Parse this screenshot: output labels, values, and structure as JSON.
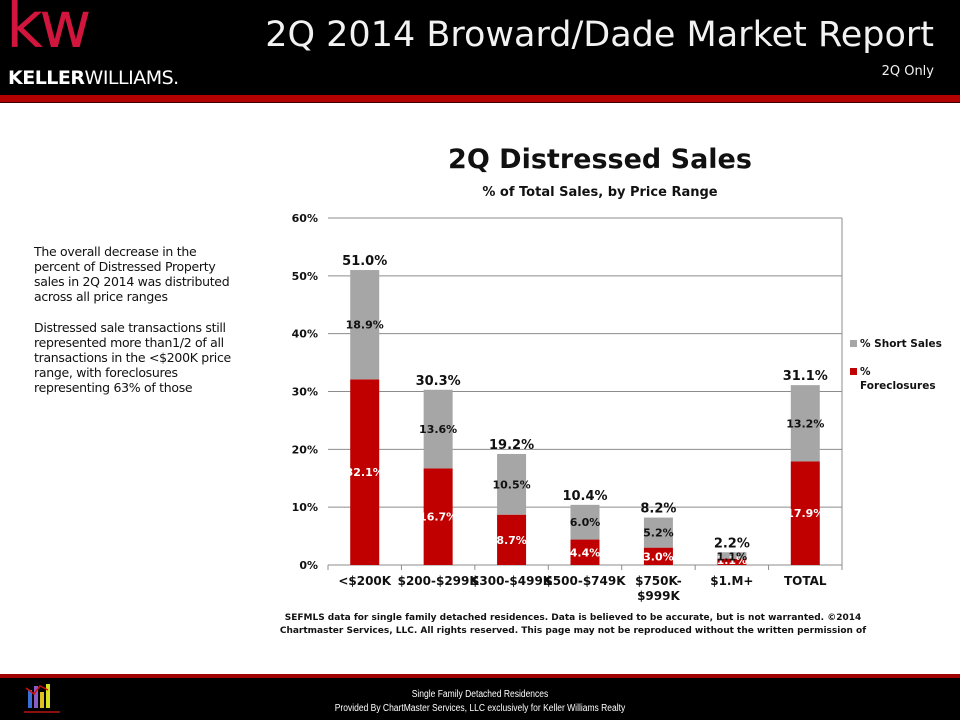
{
  "header": {
    "logo_mark": "kw",
    "logo_brand_bold": "KELLER",
    "logo_brand_light": "WILLIAMS.",
    "title": "2Q 2014 Broward/Dade Market Report",
    "subtitle": "2Q Only"
  },
  "notes": [
    "The overall decrease in the percent of Distressed Property sales in 2Q 2014 was distributed across all price ranges",
    "Distressed sale transactions still represented more than1/2 of all transactions in the <$200K price range, with foreclosures representing 63% of those"
  ],
  "chart_data": {
    "type": "bar",
    "stacked": true,
    "title": "2Q Distressed Sales",
    "subtitle": "% of Total Sales, by Price Range",
    "xlabel": "",
    "ylabel": "",
    "categories": [
      "<$200K",
      "$200-$299K",
      "$300-$499K",
      "$500-$749K",
      "$750K-\n$999K",
      "$1.M+",
      "TOTAL"
    ],
    "series": [
      {
        "name": "% Foreclosures",
        "color": "#c00000",
        "values": [
          32.1,
          16.7,
          8.7,
          4.4,
          3.0,
          1.1,
          17.9
        ],
        "labels": [
          "32.1%",
          "16.7%",
          "8.7%",
          "4.4%",
          "3.0%",
          "1.1%",
          "17.9%"
        ]
      },
      {
        "name": "% Short Sales",
        "color": "#a6a6a6",
        "values": [
          18.9,
          13.6,
          10.5,
          6.0,
          5.2,
          1.1,
          13.2
        ],
        "labels": [
          "18.9%",
          "13.6%",
          "10.5%",
          "6.0%",
          "5.2%",
          "1.1%",
          "13.2%"
        ]
      }
    ],
    "totals": [
      51.0,
      30.3,
      19.2,
      10.4,
      8.2,
      2.2,
      31.1
    ],
    "total_labels": [
      "51.0%",
      "30.3%",
      "19.2%",
      "10.4%",
      "8.2%",
      "2.2%",
      "31.1%"
    ],
    "ylim": [
      0,
      60
    ],
    "yticks": [
      0,
      10,
      20,
      30,
      40,
      50,
      60
    ],
    "ytick_labels": [
      "0%",
      "10%",
      "20%",
      "30%",
      "40%",
      "50%",
      "60%"
    ],
    "grid": true,
    "legend": {
      "placement": "right",
      "entries": [
        "% Short Sales",
        "% Foreclosures"
      ]
    }
  },
  "source_note": "SEFMLS data for single family detached residences.  Data is believed to be accurate, but is not warranted.  ©2014  Chartmaster Services, LLC.  All rights reserved. This page may not be reproduced without the written permission of",
  "footer": {
    "line1": "Single Family Detached Residences",
    "line2": "Provided By ChartMaster Services, LLC exclusively for Keller Williams Realty",
    "logo_caption": "ChartMaster Services, LLC"
  }
}
